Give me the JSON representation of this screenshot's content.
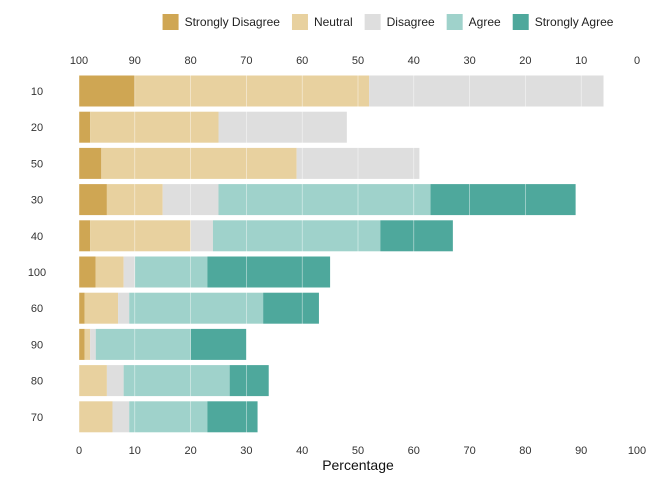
{
  "chart_data": {
    "type": "bar",
    "orientation": "horizontal",
    "stacked": true,
    "title": "",
    "xlabel": "Percentage",
    "ylabel": "",
    "xlim": [
      0,
      100
    ],
    "x_ticks_bottom": [
      "0",
      "10",
      "20",
      "30",
      "40",
      "50",
      "60",
      "70",
      "80",
      "90",
      "100"
    ],
    "x_ticks_top": [
      "100",
      "90",
      "80",
      "70",
      "60",
      "50",
      "40",
      "30",
      "20",
      "10",
      "0"
    ],
    "grid": true,
    "legend_position": "top",
    "categories": [
      "10",
      "20",
      "50",
      "30",
      "40",
      "100",
      "60",
      "90",
      "80",
      "70"
    ],
    "series": [
      {
        "name": "Strongly Disagree",
        "color": "#cfa653",
        "values": [
          10,
          2,
          4,
          5,
          2,
          3,
          1,
          1,
          0,
          0
        ]
      },
      {
        "name": "Neutral",
        "color": "#e8d19f",
        "values": [
          42,
          23,
          35,
          10,
          18,
          5,
          6,
          1,
          5,
          6
        ]
      },
      {
        "name": "Disagree",
        "color": "#dedede",
        "values": [
          42,
          23,
          22,
          10,
          4,
          2,
          2,
          1,
          3,
          3
        ]
      },
      {
        "name": "Agree",
        "color": "#9fd2cb",
        "values": [
          0,
          0,
          0,
          38,
          30,
          13,
          24,
          17,
          19,
          14
        ]
      },
      {
        "name": "Strongly Agree",
        "color": "#4ea89c",
        "values": [
          0,
          0,
          0,
          26,
          13,
          22,
          10,
          10,
          7,
          9
        ]
      }
    ]
  }
}
